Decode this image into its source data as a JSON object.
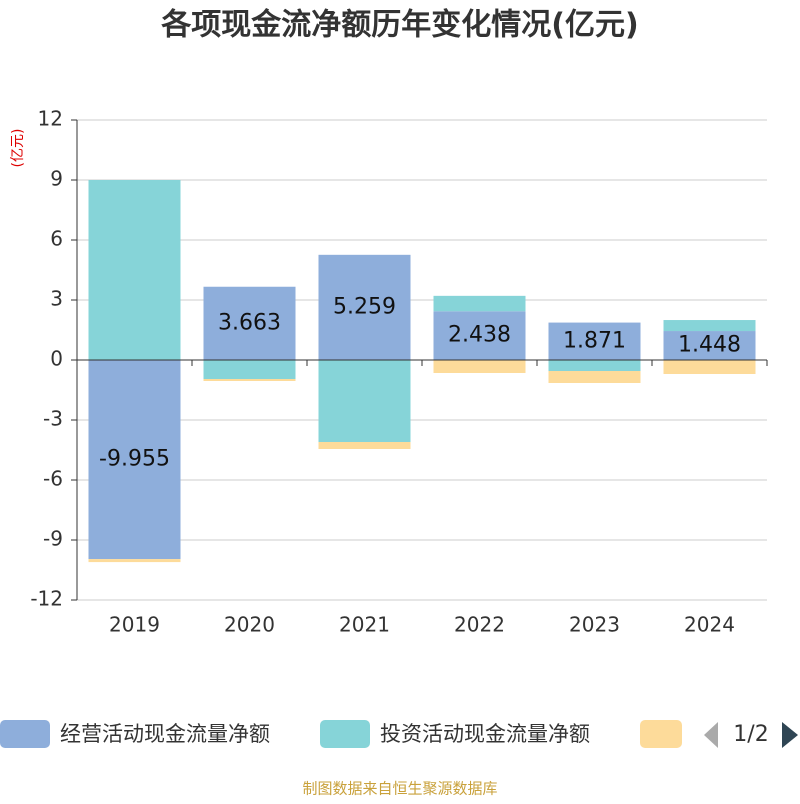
{
  "chart_data": {
    "type": "stacked_bar",
    "title": "各项现金流净额历年变化情况(亿元)",
    "y_axis_label": "(亿元)",
    "categories": [
      "2019",
      "2020",
      "2021",
      "2022",
      "2023",
      "2024"
    ],
    "series": [
      {
        "name": "经营活动现金流量净额",
        "color": "#8eaedb",
        "values": [
          -9.955,
          3.663,
          5.259,
          2.438,
          1.871,
          1.448
        ],
        "data_labels": true
      },
      {
        "name": "投资活动现金流量净额",
        "color": "#86d4d8",
        "values": [
          9.0,
          -0.95,
          -4.1,
          0.77,
          -0.55,
          0.55
        ]
      },
      {
        "color": "#fddb9a",
        "values": [
          -0.15,
          -0.1,
          -0.35,
          -0.65,
          -0.6,
          -0.7
        ]
      }
    ],
    "ylim": [
      -12,
      12
    ],
    "yticks": [
      -12,
      -9,
      -6,
      -3,
      0,
      3,
      6,
      9,
      12
    ],
    "grid": true,
    "legend_page": "1/2",
    "source": "制图数据来自恒生聚源数据库"
  }
}
